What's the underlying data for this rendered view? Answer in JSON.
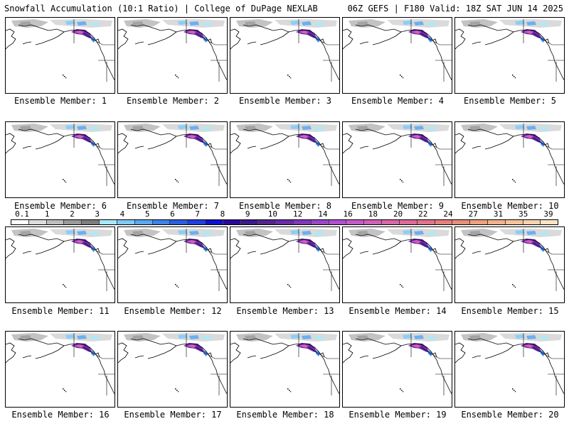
{
  "header": {
    "left": "Snowfall Accumulation (10:1 Ratio) | College of DuPage NEXLAB",
    "right": "06Z GEFS | F180 Valid: 18Z SAT JUN 14 2025"
  },
  "panels": [
    {
      "label": "Ensemble Member: 1"
    },
    {
      "label": "Ensemble Member: 2"
    },
    {
      "label": "Ensemble Member: 3"
    },
    {
      "label": "Ensemble Member: 4"
    },
    {
      "label": "Ensemble Member: 5"
    },
    {
      "label": "Ensemble Member: 6"
    },
    {
      "label": "Ensemble Member: 7"
    },
    {
      "label": "Ensemble Member: 8"
    },
    {
      "label": "Ensemble Member: 9"
    },
    {
      "label": "Ensemble Member: 10"
    },
    {
      "label": "Ensemble Member: 11"
    },
    {
      "label": "Ensemble Member: 12"
    },
    {
      "label": "Ensemble Member: 13"
    },
    {
      "label": "Ensemble Member: 14"
    },
    {
      "label": "Ensemble Member: 15"
    },
    {
      "label": "Ensemble Member: 16"
    },
    {
      "label": "Ensemble Member: 17"
    },
    {
      "label": "Ensemble Member: 18"
    },
    {
      "label": "Ensemble Member: 19"
    },
    {
      "label": "Ensemble Member: 20"
    }
  ],
  "colorbar": {
    "labels": [
      "0.1",
      "1",
      "2",
      "3",
      "4",
      "5",
      "6",
      "7",
      "8",
      "9",
      "10",
      "12",
      "14",
      "16",
      "18",
      "20",
      "22",
      "24",
      "27",
      "31",
      "35",
      "39"
    ],
    "colors": [
      "#ffffff",
      "#dcdcdc",
      "#bdbdbd",
      "#9a9a9a",
      "#7d7d7d",
      "#a8e6f5",
      "#7fc8f8",
      "#5aa8f0",
      "#3c82e8",
      "#2a5fe0",
      "#1f3fe0",
      "#1010d0",
      "#2a0a9a",
      "#3c1a8a",
      "#55248f",
      "#6b2aa8",
      "#8038b8",
      "#9a46c8",
      "#b050d0",
      "#c45ac8",
      "#d060b8",
      "#d866a8",
      "#dc6a98",
      "#e0748a",
      "#e4807e",
      "#e88e78",
      "#eca27e",
      "#f0b28a",
      "#f4c29a",
      "#f8d2ac",
      "#fbe2c2"
    ]
  }
}
